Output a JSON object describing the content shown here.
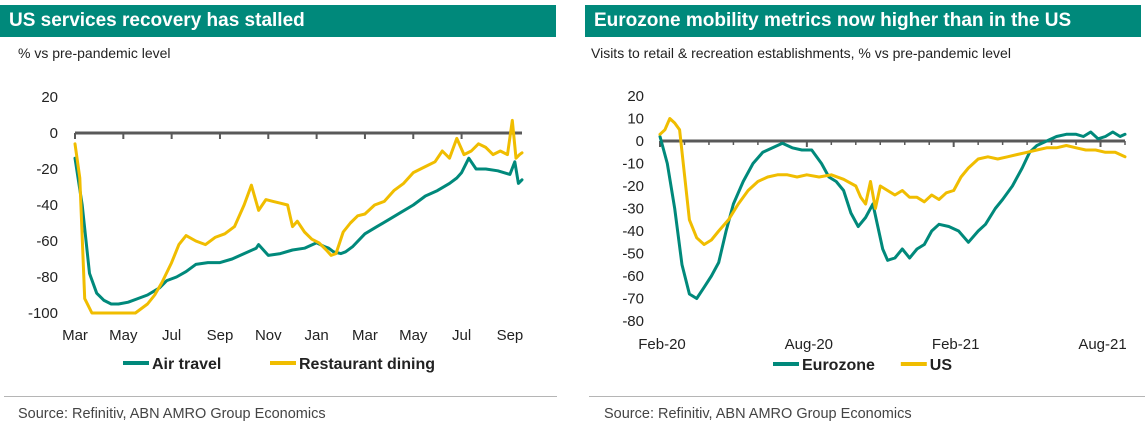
{
  "colors": {
    "teal": "#00897b",
    "gold": "#f0bd00",
    "axis": "#595959",
    "title_bg": "#00897b"
  },
  "left": {
    "title": "US services recovery has stalled",
    "subtitle": "% vs pre-pandemic level",
    "source": "Source: Refinitiv, ABN AMRO Group Economics"
  },
  "right": {
    "title": "Eurozone mobility metrics now higher than in the US",
    "subtitle": "Visits to retail & recreation establishments, % vs pre-pandemic level",
    "source": "Source: Refinitiv, ABN AMRO Group Economics"
  },
  "chart_data": [
    {
      "type": "line",
      "title": "US services recovery has stalled",
      "ylabel": "% vs pre-pandemic level",
      "xlabel": "",
      "ylim": [
        -100,
        20
      ],
      "yticks": [
        20,
        0,
        -20,
        -40,
        -60,
        -80,
        -100
      ],
      "xlim": [
        0,
        18.5
      ],
      "xtick_pos": [
        0,
        2,
        4,
        6,
        8,
        10,
        12,
        14,
        16,
        18
      ],
      "xtick_labels": [
        "Mar",
        "May",
        "Jul",
        "Sep",
        "Nov",
        "Jan",
        "Mar",
        "May",
        "Jul",
        "Sep"
      ],
      "zero_line": true,
      "legend": "bottom",
      "series": [
        {
          "name": "Air travel",
          "color": "#00897b",
          "x": [
            0,
            0.3,
            0.6,
            0.9,
            1.2,
            1.5,
            1.8,
            2.2,
            2.6,
            3.0,
            3.5,
            3.8,
            4.2,
            4.6,
            5.0,
            5.5,
            6.0,
            6.5,
            7.0,
            7.5,
            7.6,
            8.0,
            8.5,
            9.0,
            9.5,
            10.0,
            10.3,
            10.5,
            10.7,
            11.0,
            11.2,
            11.5,
            12.0,
            12.5,
            13.0,
            13.5,
            14.0,
            14.5,
            15.0,
            15.5,
            15.8,
            16.0,
            16.3,
            16.6,
            17.0,
            17.5,
            18.0,
            18.2,
            18.35,
            18.5
          ],
          "values": [
            -14,
            -40,
            -78,
            -89,
            -93,
            -95,
            -95,
            -94,
            -92,
            -90,
            -86,
            -82,
            -80,
            -77,
            -73,
            -72,
            -72,
            -70,
            -67,
            -64,
            -62,
            -68,
            -67,
            -65,
            -64,
            -61,
            -63,
            -64,
            -66,
            -67,
            -66,
            -63,
            -56,
            -52,
            -48,
            -44,
            -40,
            -35,
            -32,
            -28,
            -25,
            -22,
            -14,
            -20,
            -20,
            -21,
            -23,
            -16,
            -28,
            -26
          ]
        },
        {
          "name": "Restaurant dining",
          "color": "#f0bd00",
          "x": [
            0,
            0.2,
            0.4,
            0.7,
            1.0,
            1.5,
            2.0,
            2.5,
            3.0,
            3.3,
            3.6,
            4.0,
            4.3,
            4.6,
            5.0,
            5.4,
            5.8,
            6.2,
            6.6,
            7.0,
            7.3,
            7.6,
            7.9,
            8.2,
            8.5,
            8.8,
            9.0,
            9.2,
            9.5,
            9.8,
            10.1,
            10.4,
            10.6,
            10.8,
            11.1,
            11.4,
            11.7,
            12.0,
            12.4,
            12.8,
            13.2,
            13.6,
            14.0,
            14.3,
            14.6,
            14.9,
            15.2,
            15.5,
            15.8,
            16.1,
            16.4,
            16.7,
            17.0,
            17.3,
            17.6,
            17.9,
            18.1,
            18.25,
            18.4,
            18.5
          ],
          "values": [
            -6,
            -25,
            -92,
            -100,
            -100,
            -100,
            -100,
            -100,
            -95,
            -90,
            -83,
            -72,
            -62,
            -57,
            -60,
            -62,
            -58,
            -56,
            -52,
            -40,
            -29,
            -43,
            -37,
            -38,
            -39,
            -40,
            -52,
            -49,
            -55,
            -59,
            -61,
            -65,
            -68,
            -67,
            -55,
            -50,
            -46,
            -45,
            -40,
            -38,
            -32,
            -28,
            -22,
            -20,
            -18,
            -16,
            -10,
            -14,
            -3,
            -12,
            -10,
            -6,
            -8,
            -12,
            -10,
            -12,
            7,
            -14,
            -12,
            -11
          ]
        }
      ]
    },
    {
      "type": "line",
      "title": "Eurozone mobility metrics now higher than in the US",
      "ylabel": "Visits to retail & recreation establishments, % vs pre-pandemic level",
      "xlabel": "",
      "ylim": [
        -80,
        20
      ],
      "yticks": [
        20,
        10,
        0,
        -10,
        -20,
        -30,
        -40,
        -50,
        -60,
        -70,
        -80
      ],
      "xlim": [
        0,
        19
      ],
      "xtick_pos": [
        0,
        6,
        12,
        18
      ],
      "xtick_labels": [
        "Feb-20",
        "Aug-20",
        "Feb-21",
        "Aug-21"
      ],
      "minor_tick_step": 1,
      "zero_line": true,
      "legend": "bottom",
      "series": [
        {
          "name": "Eurozone",
          "color": "#00897b",
          "x": [
            0,
            0.3,
            0.6,
            0.9,
            1.2,
            1.5,
            1.8,
            2.1,
            2.4,
            2.7,
            3.0,
            3.4,
            3.8,
            4.2,
            4.6,
            5.0,
            5.4,
            5.8,
            6.2,
            6.6,
            6.9,
            7.2,
            7.5,
            7.8,
            8.1,
            8.4,
            8.7,
            8.9,
            9.1,
            9.3,
            9.6,
            9.9,
            10.2,
            10.5,
            10.8,
            11.1,
            11.4,
            11.8,
            12.2,
            12.6,
            13.0,
            13.3,
            13.7,
            14.0,
            14.4,
            14.8,
            15.1,
            15.4,
            15.8,
            16.2,
            16.6,
            17.0,
            17.3,
            17.6,
            17.9,
            18.2,
            18.5,
            18.8,
            19.0
          ],
          "values": [
            2,
            -10,
            -30,
            -55,
            -68,
            -70,
            -65,
            -60,
            -54,
            -40,
            -28,
            -18,
            -10,
            -5,
            -3,
            -1,
            -3,
            -4,
            -4,
            -10,
            -16,
            -18,
            -22,
            -32,
            -38,
            -34,
            -28,
            -38,
            -48,
            -53,
            -52,
            -48,
            -52,
            -48,
            -46,
            -40,
            -37,
            -38,
            -40,
            -45,
            -40,
            -37,
            -30,
            -26,
            -20,
            -12,
            -5,
            -2,
            0,
            2,
            3,
            3,
            2,
            4,
            1,
            2,
            4,
            2,
            3
          ]
        },
        {
          "name": "US",
          "color": "#f0bd00",
          "x": [
            0,
            0.2,
            0.4,
            0.6,
            0.8,
            1.0,
            1.2,
            1.5,
            1.8,
            2.1,
            2.4,
            2.8,
            3.2,
            3.6,
            4.0,
            4.4,
            4.8,
            5.2,
            5.6,
            6.0,
            6.5,
            7.0,
            7.5,
            8.0,
            8.2,
            8.4,
            8.6,
            8.8,
            9.0,
            9.3,
            9.6,
            9.9,
            10.2,
            10.5,
            10.8,
            11.1,
            11.4,
            11.7,
            12.0,
            12.3,
            12.6,
            13.0,
            13.4,
            13.8,
            14.2,
            14.6,
            15.0,
            15.4,
            15.8,
            16.2,
            16.6,
            17.0,
            17.4,
            17.8,
            18.2,
            18.6,
            19.0
          ],
          "values": [
            3,
            5,
            10,
            8,
            5,
            -15,
            -35,
            -43,
            -46,
            -44,
            -40,
            -35,
            -28,
            -22,
            -18,
            -16,
            -15,
            -15,
            -16,
            -15,
            -16,
            -15,
            -17,
            -20,
            -25,
            -28,
            -18,
            -30,
            -20,
            -22,
            -24,
            -22,
            -25,
            -25,
            -27,
            -24,
            -26,
            -23,
            -22,
            -16,
            -12,
            -8,
            -7,
            -8,
            -7,
            -6,
            -5,
            -4,
            -3,
            -3,
            -2,
            -3,
            -4,
            -4,
            -5,
            -5,
            -7
          ]
        }
      ]
    }
  ]
}
